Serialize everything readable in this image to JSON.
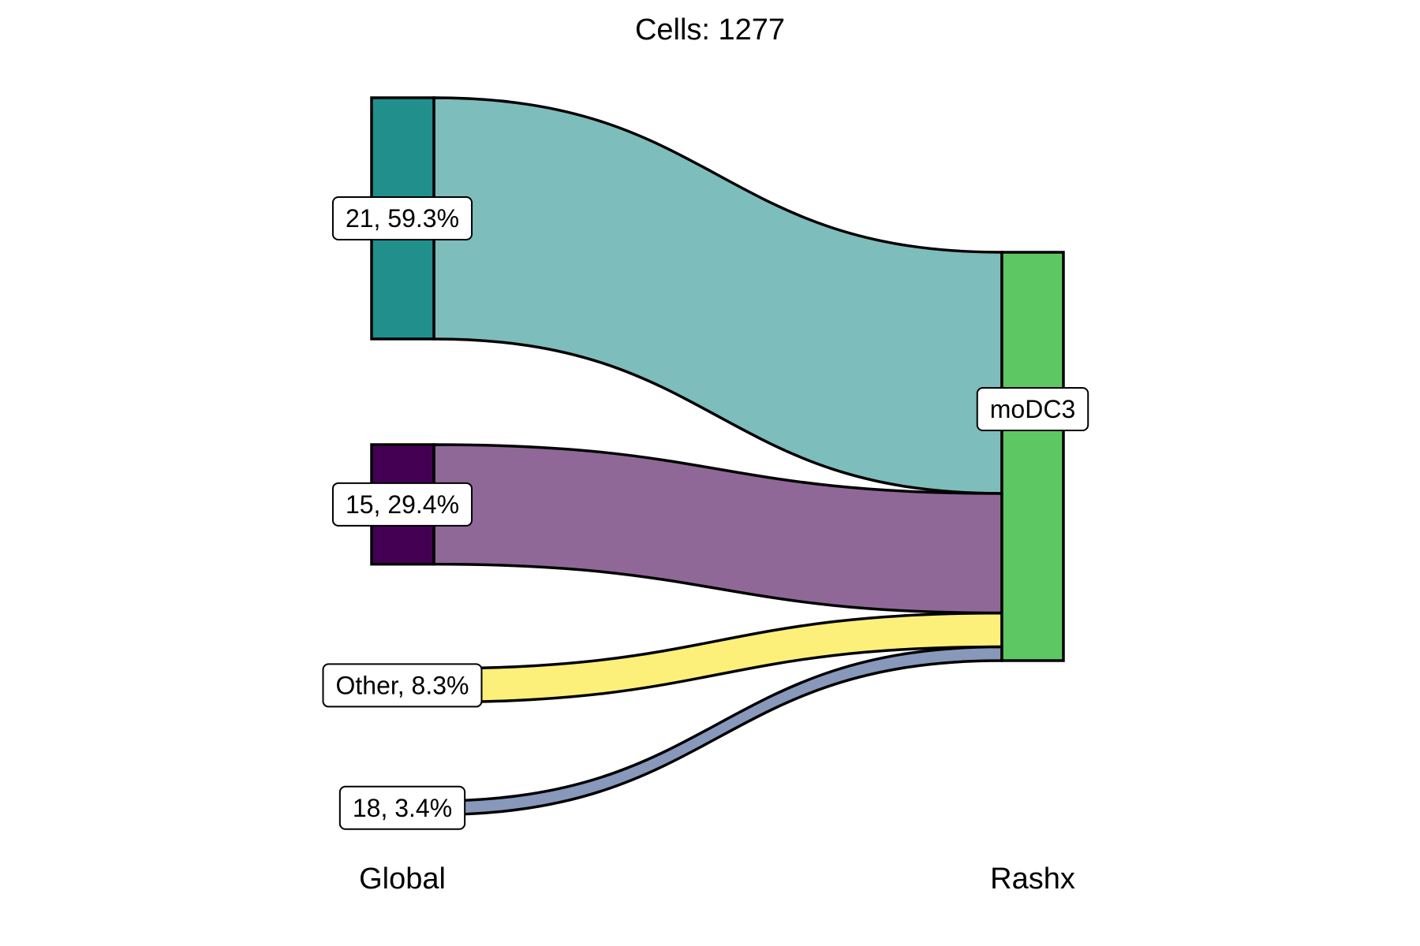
{
  "chart_data": {
    "type": "sankey",
    "title": "Cells:  1277",
    "axes": [
      "Global",
      "Rashx"
    ],
    "left_nodes": [
      {
        "label": "21, 59.3%",
        "name": "21",
        "value": 59.3,
        "color": "#21908C",
        "flow_color": "#7DBDBB"
      },
      {
        "label": "15, 29.4%",
        "name": "15",
        "value": 29.4,
        "color": "#440154",
        "flow_color": "#8F6898"
      },
      {
        "label": "Other, 8.3%",
        "name": "Other",
        "value": 8.3,
        "color": "#FDE725",
        "flow_color": "#FDF07A"
      },
      {
        "label": "18, 3.4%",
        "name": "18",
        "value": 3.4,
        "color": "#2E4A87",
        "flow_color": "#8898BB"
      }
    ],
    "right_nodes": [
      {
        "label": "moDC3",
        "name": "moDC3",
        "value": 100,
        "color": "#5DC863"
      }
    ]
  }
}
